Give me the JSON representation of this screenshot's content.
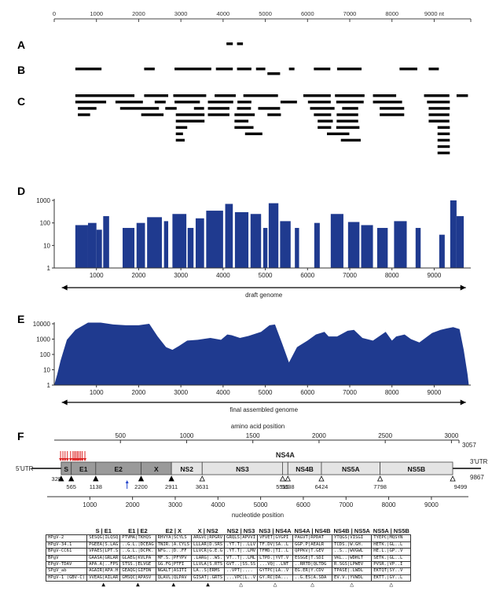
{
  "panel_labels": {
    "A": "A",
    "B": "B",
    "C": "C",
    "D": "D",
    "E": "E",
    "F": "F"
  },
  "top_axis": {
    "ticks": [
      "0",
      "1000",
      "2000",
      "3000",
      "4000",
      "5000",
      "6000",
      "7000",
      "8000",
      "9000 nt"
    ],
    "max": 9867
  },
  "reads": {
    "A": [
      [
        4080,
        4230
      ],
      [
        4330,
        4470
      ]
    ],
    "B": [
      [
        500,
        1120
      ],
      [
        2130,
        2380
      ],
      [
        2850,
        3720
      ],
      [
        3830,
        4230
      ],
      [
        4330,
        4670
      ],
      [
        4780,
        5000
      ],
      [
        5050,
        5350
      ],
      [
        5560,
        5690
      ],
      [
        6150,
        6540
      ],
      [
        6700,
        7280
      ],
      [
        8180,
        8600
      ],
      [
        8870,
        9110
      ]
    ],
    "C": [
      [
        500,
        1900
      ],
      [
        2130,
        2700
      ],
      [
        2820,
        3600
      ],
      [
        3800,
        4300
      ],
      [
        4480,
        5300
      ],
      [
        5360,
        5750
      ],
      [
        5900,
        6550
      ],
      [
        6650,
        7350
      ],
      [
        7550,
        8100
      ],
      [
        8760,
        9360
      ],
      [
        9530,
        9800
      ],
      [
        500,
        1230
      ],
      [
        1450,
        2100
      ],
      [
        2380,
        2640
      ],
      [
        2850,
        3450
      ],
      [
        3640,
        4240
      ],
      [
        4340,
        4670
      ],
      [
        4830,
        5350
      ],
      [
        6010,
        6550
      ],
      [
        6680,
        7330
      ],
      [
        7550,
        8240
      ],
      [
        8830,
        9370
      ],
      [
        560,
        1000
      ],
      [
        1560,
        2480
      ],
      [
        2630,
        2900
      ],
      [
        2880,
        3560
      ],
      [
        3640,
        4150
      ],
      [
        4330,
        4660
      ],
      [
        5050,
        5370
      ],
      [
        6060,
        6640
      ],
      [
        6690,
        7200
      ],
      [
        7710,
        8290
      ],
      [
        8870,
        9370
      ],
      [
        560,
        850
      ],
      [
        2060,
        2590
      ],
      [
        2880,
        3560
      ],
      [
        3640,
        4150
      ],
      [
        4270,
        4750
      ],
      [
        6150,
        6560
      ],
      [
        6690,
        7200
      ],
      [
        7710,
        8290
      ],
      [
        8870,
        9360
      ],
      [
        2880,
        3150
      ],
      [
        3310,
        3550
      ],
      [
        4270,
        4600
      ],
      [
        6240,
        6600
      ],
      [
        6680,
        7230
      ],
      [
        8870,
        9360
      ],
      [
        2880,
        3050
      ],
      [
        4270,
        4720
      ],
      [
        6240,
        6560
      ],
      [
        6820,
        7200
      ],
      [
        2880,
        3090
      ],
      [
        4520,
        4930
      ],
      [
        6460,
        6990
      ],
      [
        6790,
        7260
      ],
      [
        9080,
        9370
      ],
      [
        9080,
        9370
      ],
      [
        9080,
        9370
      ],
      [
        9080,
        9370
      ],
      [
        9080,
        9370
      ]
    ]
  },
  "coverage": {
    "D": {
      "yticks": [
        "1000",
        "100",
        "10",
        "1"
      ],
      "xticks": [
        "1000",
        "2000",
        "3000",
        "4000",
        "5000",
        "6000",
        "7000",
        "8000",
        "9000"
      ],
      "caption": "draft genome",
      "segments": [
        [
          500,
          800,
          80
        ],
        [
          800,
          1000,
          100
        ],
        [
          1000,
          1130,
          50
        ],
        [
          1160,
          1300,
          200
        ],
        [
          1620,
          1900,
          60
        ],
        [
          1950,
          2150,
          100
        ],
        [
          2200,
          2550,
          180
        ],
        [
          2600,
          2700,
          120
        ],
        [
          2800,
          3130,
          250
        ],
        [
          3160,
          3300,
          60
        ],
        [
          3350,
          3550,
          160
        ],
        [
          3600,
          4000,
          350
        ],
        [
          4050,
          4230,
          700
        ],
        [
          4280,
          4600,
          300
        ],
        [
          4650,
          4900,
          250
        ],
        [
          4950,
          5050,
          60
        ],
        [
          5080,
          5310,
          750
        ],
        [
          5350,
          5600,
          120
        ],
        [
          5700,
          5800,
          60
        ],
        [
          6160,
          6290,
          100
        ],
        [
          6550,
          6850,
          250
        ],
        [
          6960,
          7230,
          110
        ],
        [
          7270,
          7550,
          80
        ],
        [
          7650,
          7900,
          60
        ],
        [
          8050,
          8350,
          120
        ],
        [
          8560,
          8680,
          60
        ],
        [
          9120,
          9250,
          30
        ],
        [
          9380,
          9530,
          1000
        ],
        [
          9530,
          9700,
          200
        ]
      ]
    },
    "E": {
      "yticks": [
        "10000",
        "1000",
        "100",
        "10",
        "1"
      ],
      "xticks": [
        "1000",
        "2000",
        "3000",
        "4000",
        "5000",
        "6000",
        "7000",
        "8000",
        "9000"
      ],
      "caption": "final assembled genome",
      "profile": [
        [
          0,
          1
        ],
        [
          70,
          5
        ],
        [
          150,
          40
        ],
        [
          300,
          900
        ],
        [
          500,
          4000
        ],
        [
          800,
          12000
        ],
        [
          1100,
          12000
        ],
        [
          1400,
          9000
        ],
        [
          1700,
          8000
        ],
        [
          2000,
          8000
        ],
        [
          2250,
          10000
        ],
        [
          2450,
          1500
        ],
        [
          2650,
          300
        ],
        [
          2800,
          200
        ],
        [
          2950,
          350
        ],
        [
          3150,
          800
        ],
        [
          3400,
          900
        ],
        [
          3700,
          1200
        ],
        [
          3950,
          900
        ],
        [
          4100,
          2000
        ],
        [
          4200,
          1800
        ],
        [
          4400,
          1200
        ],
        [
          4600,
          1600
        ],
        [
          4900,
          3000
        ],
        [
          5100,
          8000
        ],
        [
          5230,
          9000
        ],
        [
          5400,
          500
        ],
        [
          5560,
          30
        ],
        [
          5750,
          300
        ],
        [
          6000,
          800
        ],
        [
          6200,
          2000
        ],
        [
          6400,
          3000
        ],
        [
          6500,
          1500
        ],
        [
          6700,
          1500
        ],
        [
          6950,
          3500
        ],
        [
          7100,
          4000
        ],
        [
          7300,
          1200
        ],
        [
          7550,
          800
        ],
        [
          7850,
          3000
        ],
        [
          8000,
          800
        ],
        [
          8100,
          1500
        ],
        [
          8300,
          2000
        ],
        [
          8450,
          1000
        ],
        [
          8650,
          600
        ],
        [
          8950,
          2500
        ],
        [
          9150,
          4000
        ],
        [
          9300,
          5000
        ],
        [
          9450,
          6000
        ],
        [
          9600,
          4500
        ],
        [
          9700,
          200
        ],
        [
          9790,
          5
        ],
        [
          9820,
          1
        ]
      ]
    }
  },
  "panel_F": {
    "aa_axis_label": "amino acid position",
    "aa_ticks": [
      "500",
      "1000",
      "1500",
      "2000",
      "2500",
      "3000"
    ],
    "aa_end": "3057",
    "nt_axis_label": "nucleotide position",
    "nt_ticks": [
      "1000",
      "2000",
      "3000",
      "4000",
      "5000",
      "6000",
      "7000",
      "8000",
      "9000"
    ],
    "utr5": "5'UTR",
    "utr3": "3'UTR",
    "utr3_end": "9867",
    "ns4a_label": "NS4A",
    "genes": [
      {
        "name": "S",
        "start": 328,
        "end": 565,
        "fill": "#9a9a9a"
      },
      {
        "name": "E1",
        "start": 565,
        "end": 1138,
        "fill": "#9a9a9a"
      },
      {
        "name": "E2",
        "start": 1138,
        "end": 2200,
        "fill": "#9a9a9a"
      },
      {
        "name": "X",
        "start": 2200,
        "end": 2911,
        "fill": "#9a9a9a"
      },
      {
        "name": "NS2",
        "start": 2911,
        "end": 3631,
        "fill": "#e4e4e4"
      },
      {
        "name": "NS3",
        "start": 3631,
        "end": 5515,
        "fill": "#e4e4e4"
      },
      {
        "name": "NS4B",
        "start": 5638,
        "end": 6424,
        "fill": "#e4e4e4"
      },
      {
        "name": "NS5A",
        "start": 6424,
        "end": 7798,
        "fill": "#e4e4e4"
      },
      {
        "name": "NS5B",
        "start": 7798,
        "end": 9499,
        "fill": "#e4e4e4"
      }
    ],
    "sites": [
      {
        "nt": 328,
        "label": "328",
        "filled": true
      },
      {
        "nt": 565,
        "label": "565",
        "filled": true
      },
      {
        "nt": 1138,
        "label": "1138",
        "filled": true
      },
      {
        "nt": 2200,
        "label": "2200",
        "filled": true
      },
      {
        "nt": 2911,
        "label": "2911",
        "filled": true
      },
      {
        "nt": 3631,
        "label": "3631",
        "filled": false
      },
      {
        "nt": 5515,
        "label": "5515",
        "filled": false
      },
      {
        "nt": 5638,
        "label": "5638",
        "filled": false
      },
      {
        "nt": 6424,
        "label": "6424",
        "filled": false
      },
      {
        "nt": 7798,
        "label": "7798",
        "filled": false
      },
      {
        "nt": 9499,
        "label": "9499",
        "filled": false
      }
    ],
    "red_arrows": [
      130,
      185,
      235,
      290,
      365,
      420,
      455,
      490,
      525,
      560,
      600,
      640,
      700
    ],
    "blue_arrow": 215,
    "alignment": {
      "columns": [
        "S | E1",
        "E1 | E2",
        "E2 | X",
        "X | NS2",
        "NS2 | NS3",
        "NS3 | NS4A",
        "NS4A | NS4B",
        "NS4B | NS5A",
        "NS5A | NS5B"
      ],
      "rows": [
        {
          "name": "HPgV-2",
          "cells": [
            "SESQG|ILQSQ",
            "PTVMA|TKHQS",
            "RHVYA|SCYLS",
            "ARGVC|RPGRV",
            "GRQLS|APVVI",
            "VFVET|GYGPI",
            "PAGVT|RPDAT",
            "YTQGS|VISGI",
            "TYEPC|MQSYN"
          ]
        },
        {
          "name": "HPgV-34.1",
          "cells": [
            "PGEEA|S.LAG",
            "..G.L.|DCEAG",
            "TNIR.|A.CYLS",
            "LLLAR|D.SRS",
            ".YT.T|..LLV",
            "TF.DV|SA..L",
            "GGP.P|AEALR",
            "TCDS.|W.GH.",
            "HETK.|GL..L"
          ]
        },
        {
          "name": "BPgV-CC61",
          "cells": [
            "VPAES|LPT.S",
            "..G.L.|DCPK.",
            "NFG..|D..FF",
            "LLVCR|G.E.G",
            ".YT.T|..LMV",
            "TFMD.|TI..L",
            "QPPKV|T.GEV",
            "..S..|WVGWL",
            "HE.L.|GP..V"
          ]
        },
        {
          "name": "BPgV",
          "cells": [
            "GAASA|GRLAR",
            "GLAEG|KVLPA",
            "MF.S.|PFYPV",
            ".LARG|..WS.",
            "VT..T|..LML",
            "LTPD.|YVT.V",
            "ESSGE|T.SDI",
            "VKL..|WDHLT",
            "SETK.|GL..L"
          ]
        },
        {
          "name": "EPgV-TDAV",
          "cells": [
            "APA.A|..FPS",
            "STSS.|ELVGE",
            "GG.FG|PTFI",
            "LLVLA|S.RTS",
            "GVT..|SS.SS",
            "...VQ|..LNT",
            "..RRTD|QLTDG",
            "R.SGS|LPWEV",
            "PVSR.|VP..I"
          ]
        },
        {
          "name": "SPgV_ab",
          "cells": [
            "AGAIR|APA.H",
            "GEAQG|GIFDN",
            "NGALT|ASITI",
            "LA..S|ERMS",
            "..VPT|....",
            "GYTPC|LA..V",
            "EG.ER|Y.CDV",
            "TPASE|.LWDL",
            "EKTQT|SY..V"
          ]
        },
        {
          "name": "HPgV-1 (GBV-C)",
          "cells": [
            "VVEAG|AILAR",
            "GMSQC|APASV",
            "QLAVL|QLPAV",
            "GISAT|.GRTS",
            "...VPC|L..V",
            "GY.RC|DA...",
            "..G.ES|A.SDA",
            "EV.V.|YVWDL",
            "EKTT.|GY..L"
          ]
        }
      ],
      "triangles": [
        "filled",
        "filled",
        "filled",
        "filled",
        "open",
        "open",
        "open",
        "open",
        "open"
      ]
    }
  }
}
